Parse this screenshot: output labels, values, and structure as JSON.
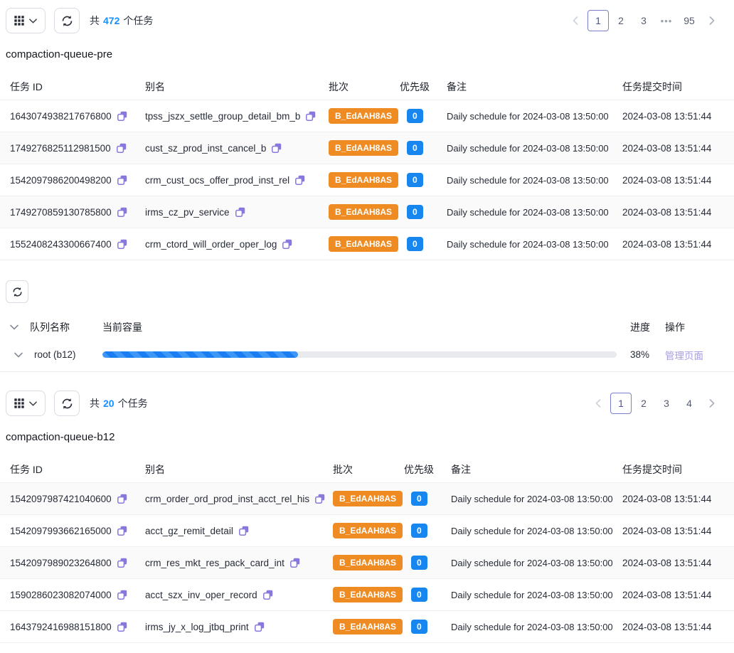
{
  "colors": {
    "accent_blue": "#1890ff",
    "badge_orange": "#ee8b23",
    "badge_blue": "#1787ef",
    "copy_purple": "#8878dd",
    "link_purple": "#a89be2",
    "pagination_active_border": "#7a7fd0",
    "progress_fill": "#1b7df2",
    "progress_track": "#e9eaee"
  },
  "icons": {
    "grid": "grid-icon",
    "chevron_down": "chevron-down-icon",
    "refresh": "refresh-icon",
    "copy": "copy-icon",
    "expand": "chevron-down-icon",
    "prev": "chevron-left-icon",
    "next": "chevron-right-icon"
  },
  "sections": {
    "pre": {
      "toolbar": {
        "count_prefix": "共",
        "count": "472",
        "count_suffix": "个任务"
      },
      "pagination": {
        "items": [
          "1",
          "2",
          "3",
          "•••",
          "95"
        ],
        "active": "1"
      },
      "title": "compaction-queue-pre",
      "table": {
        "headers": {
          "id": "任务 ID",
          "alias": "别名",
          "batch": "批次",
          "priority": "优先级",
          "remark": "备注",
          "submitted": "任务提交时间"
        },
        "rows": [
          {
            "id": "1643074938217676800",
            "alias": "tpss_jszx_settle_group_detail_bm_b",
            "batch": "B_EdAAH8AS",
            "priority": "0",
            "remark": "Daily schedule for 2024-03-08 13:50:00",
            "submitted": "2024-03-08 13:51:44"
          },
          {
            "id": "1749276825112981500",
            "alias": "cust_sz_prod_inst_cancel_b",
            "batch": "B_EdAAH8AS",
            "priority": "0",
            "remark": "Daily schedule for 2024-03-08 13:50:00",
            "submitted": "2024-03-08 13:51:44"
          },
          {
            "id": "1542097986200498200",
            "alias": "crm_cust_ocs_offer_prod_inst_rel",
            "batch": "B_EdAAH8AS",
            "priority": "0",
            "remark": "Daily schedule for 2024-03-08 13:50:00",
            "submitted": "2024-03-08 13:51:44"
          },
          {
            "id": "1749270859130785800",
            "alias": "irms_cz_pv_service",
            "batch": "B_EdAAH8AS",
            "priority": "0",
            "remark": "Daily schedule for 2024-03-08 13:50:00",
            "submitted": "2024-03-08 13:51:44"
          },
          {
            "id": "1552408243300667400",
            "alias": "crm_ctord_will_order_oper_log",
            "batch": "B_EdAAH8AS",
            "priority": "0",
            "remark": "Daily schedule for 2024-03-08 13:50:00",
            "submitted": "2024-03-08 13:51:44"
          }
        ]
      }
    },
    "queues": {
      "headers": {
        "name": "队列名称",
        "capacity": "当前容量",
        "progress": "进度",
        "action": "操作"
      },
      "rows": [
        {
          "name": "root (b12)",
          "percent": 38,
          "percent_label": "38%",
          "action": "管理页面"
        }
      ]
    },
    "b12": {
      "toolbar": {
        "count_prefix": "共",
        "count": "20",
        "count_suffix": "个任务"
      },
      "pagination": {
        "items": [
          "1",
          "2",
          "3",
          "4"
        ],
        "active": "1"
      },
      "title": "compaction-queue-b12",
      "table": {
        "headers": {
          "id": "任务 ID",
          "alias": "别名",
          "batch": "批次",
          "priority": "优先级",
          "remark": "备注",
          "submitted": "任务提交时间"
        },
        "rows": [
          {
            "id": "1542097987421040600",
            "alias": "crm_order_ord_prod_inst_acct_rel_his",
            "batch": "B_EdAAH8AS",
            "priority": "0",
            "remark": "Daily schedule for 2024-03-08 13:50:00",
            "submitted": "2024-03-08 13:51:44"
          },
          {
            "id": "1542097993662165000",
            "alias": "acct_gz_remit_detail",
            "batch": "B_EdAAH8AS",
            "priority": "0",
            "remark": "Daily schedule for 2024-03-08 13:50:00",
            "submitted": "2024-03-08 13:51:44"
          },
          {
            "id": "1542097989023264800",
            "alias": "crm_res_mkt_res_pack_card_int",
            "batch": "B_EdAAH8AS",
            "priority": "0",
            "remark": "Daily schedule for 2024-03-08 13:50:00",
            "submitted": "2024-03-08 13:51:44"
          },
          {
            "id": "1590286023082074000",
            "alias": "acct_szx_inv_oper_record",
            "batch": "B_EdAAH8AS",
            "priority": "0",
            "remark": "Daily schedule for 2024-03-08 13:50:00",
            "submitted": "2024-03-08 13:51:44"
          },
          {
            "id": "1643792416988151800",
            "alias": "irms_jy_x_log_jtbq_print",
            "batch": "B_EdAAH8AS",
            "priority": "0",
            "remark": "Daily schedule for 2024-03-08 13:50:00",
            "submitted": "2024-03-08 13:51:44"
          }
        ]
      }
    }
  }
}
